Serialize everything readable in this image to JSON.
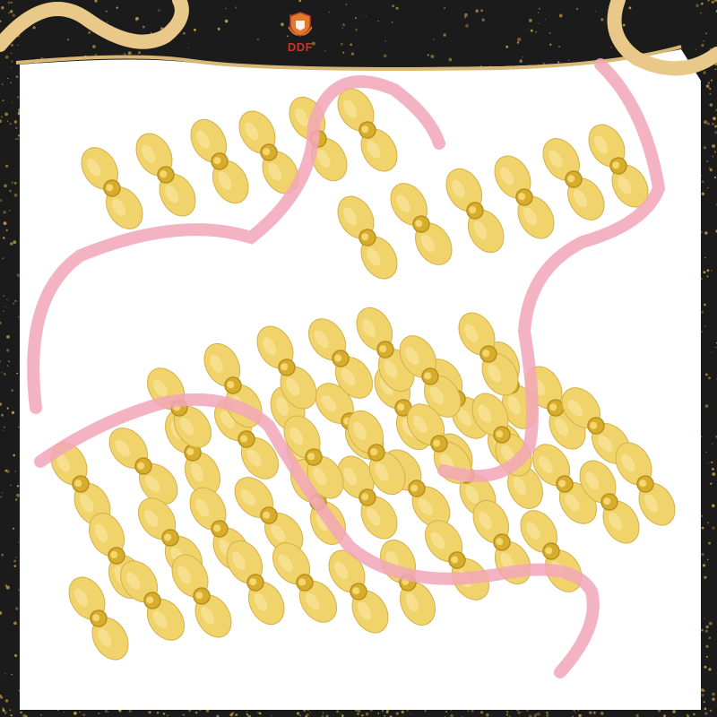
{
  "brand": {
    "name": "DDF",
    "logo_icon": "shield-crest-icon",
    "accent_color": "#c0392b"
  },
  "product": {
    "subject": "gold-propeller-charms",
    "item_color": "#f1d36b",
    "center_color": "#d8ad2c"
  },
  "decorations": {
    "frame_color": "#1b1b1b",
    "glitter_color": "#c9a24a",
    "gold_ribbon_color": "#e8c98a",
    "pink_ribbon_color": "#f2a6b8"
  }
}
